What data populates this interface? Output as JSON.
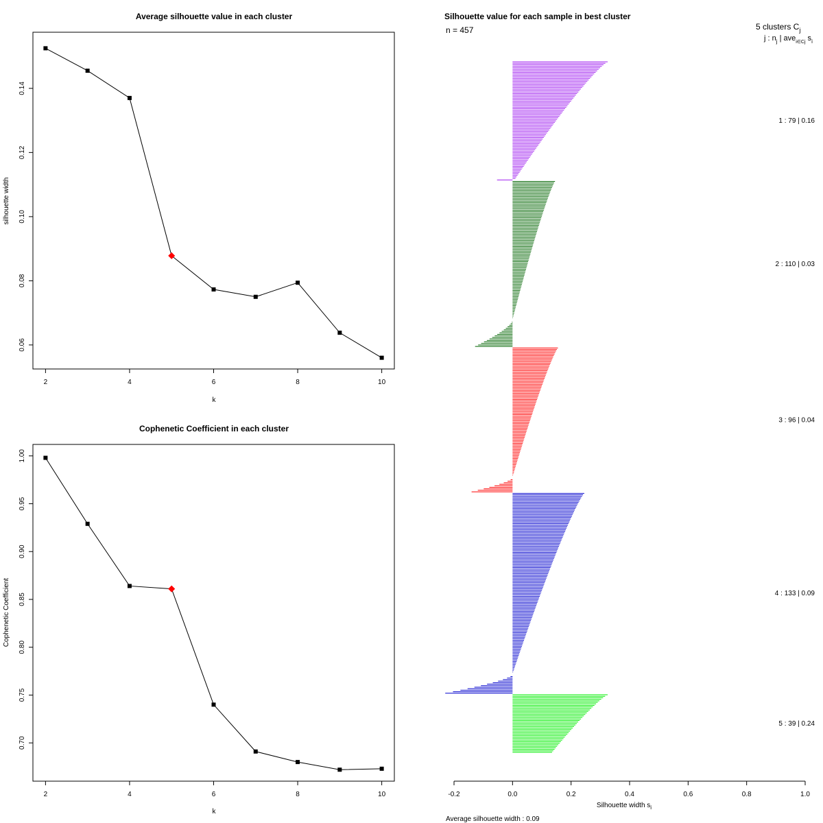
{
  "chart_data": [
    {
      "type": "line",
      "title": "Average silhouette value in each cluster",
      "xlabel": "k",
      "ylabel": "silhouette width",
      "x": [
        2,
        3,
        4,
        5,
        6,
        7,
        8,
        9,
        10
      ],
      "y": [
        0.1525,
        0.1455,
        0.137,
        0.0878,
        0.0773,
        0.075,
        0.0794,
        0.0638,
        0.056
      ],
      "highlight_x": 5,
      "highlight_color": "#ff0000",
      "xlim": [
        1.7,
        10.3
      ],
      "ylim": [
        0.0525,
        0.1575
      ],
      "xticks": [
        "2",
        "4",
        "6",
        "8",
        "10"
      ],
      "yticks": [
        "0.06",
        "0.08",
        "0.10",
        "0.12",
        "0.14"
      ]
    },
    {
      "type": "line",
      "title": "Cophenetic Coefficient in each cluster",
      "xlabel": "k",
      "ylabel": "Cophenetic Coefficient",
      "x": [
        2,
        3,
        4,
        5,
        6,
        7,
        8,
        9,
        10
      ],
      "y": [
        0.998,
        0.929,
        0.864,
        0.861,
        0.74,
        0.691,
        0.68,
        0.672,
        0.673
      ],
      "highlight_x": 5,
      "highlight_color": "#ff0000",
      "xlim": [
        1.7,
        10.3
      ],
      "ylim": [
        0.66,
        1.012
      ],
      "xticks": [
        "2",
        "4",
        "6",
        "8",
        "10"
      ],
      "yticks": [
        "0.70",
        "0.75",
        "0.80",
        "0.85",
        "0.90",
        "0.95",
        "1.00"
      ]
    },
    {
      "type": "bar",
      "orientation": "horizontal",
      "title": "Silhouette value for each sample in best cluster",
      "n_label": "n = 457",
      "xlabel": "Silhouette width s",
      "xlabel_sub": "i",
      "xlim": [
        -0.2,
        1.0
      ],
      "xticks": [
        "-0.2",
        "0.0",
        "0.2",
        "0.4",
        "0.6",
        "0.8",
        "1.0"
      ],
      "footer": "Average silhouette width :  0.09",
      "legend_header": "5  clusters  C",
      "legend_header_sub": "j",
      "legend_sub": "j :  n",
      "legend_sub_mid": "j",
      "legend_sub_rest": " | ave",
      "legend_sub_sub": "i∈Cj",
      "legend_sub_tail": " s",
      "legend_sub_tail_sub": "i",
      "series": [
        {
          "name": "1",
          "n": 79,
          "avg": 0.16,
          "label": "1 :   79  |  0.16",
          "color": "#a020f0",
          "max": 0.325,
          "min": 0.01,
          "neg_count": 1,
          "neg_max": -0.053
        },
        {
          "name": "2",
          "n": 110,
          "avg": 0.03,
          "label": "2 :   110  |  0.03",
          "color": "#006400",
          "max": 0.145,
          "min": 0.0,
          "neg_count": 18,
          "neg_max": -0.128
        },
        {
          "name": "3",
          "n": 96,
          "avg": 0.04,
          "label": "3 :   96  |  0.04",
          "color": "#ff0000",
          "max": 0.155,
          "min": 0.0,
          "neg_count": 10,
          "neg_max": -0.14
        },
        {
          "name": "4",
          "n": 133,
          "avg": 0.09,
          "label": "4 :   133  |  0.09",
          "color": "#0000cd",
          "max": 0.245,
          "min": 0.0,
          "neg_count": 13,
          "neg_max": -0.23
        },
        {
          "name": "5",
          "n": 39,
          "avg": 0.24,
          "label": "5 :   39  |  0.24",
          "color": "#00ee00",
          "max": 0.325,
          "min": 0.135,
          "neg_count": 0,
          "neg_max": 0
        }
      ]
    }
  ]
}
